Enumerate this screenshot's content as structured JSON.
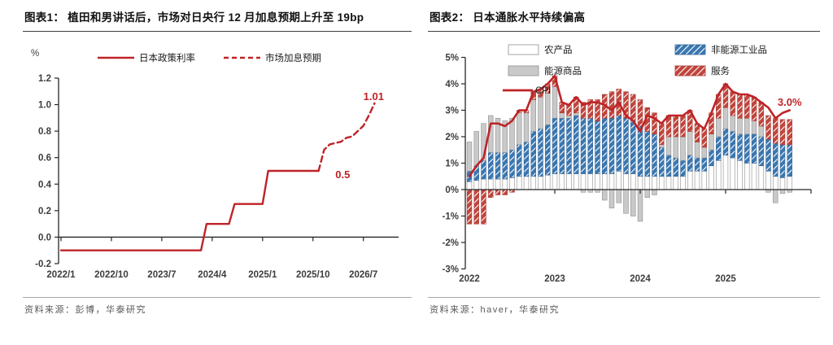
{
  "colors": {
    "red": "#bf2327",
    "hatch_blue": "#3a77b0",
    "hatch_blue_stroke": "#2f639a",
    "hatch_red": "#c0453d",
    "hatch_red_stroke": "#a83b33",
    "bar_gray": "#c9c9c9",
    "bar_white": "#ffffff",
    "bar_stroke": "#8f8f8f",
    "axis": "#262626",
    "tick_text": "#3d3d3d"
  },
  "chart_data": [
    {
      "type": "line",
      "figure_label": "图表1",
      "title": "图表1：  植田和男讲话后，市场对日央行 12 月加息预期上升至 19bp",
      "unit_label": "%",
      "ylim": [
        -0.2,
        1.2
      ],
      "yticks": [
        "1.2",
        "1.0",
        "0.8",
        "0.6",
        "0.4",
        "0.2",
        "0.0",
        "-0.2"
      ],
      "xticks": [
        "2022/1",
        "2022/10",
        "2023/7",
        "2024/4",
        "2025/1",
        "2025/10",
        "2026/7"
      ],
      "x_months_total": 60,
      "grid": false,
      "legend_position": "top",
      "legend": [
        {
          "label": "日本政策利率",
          "style": "solid"
        },
        {
          "label": "市场加息预期",
          "style": "dashed"
        }
      ],
      "series": [
        {
          "name": "日本政策利率",
          "style": "solid",
          "points": [
            [
              "2022-01",
              -0.1
            ],
            [
              "2024-02",
              -0.1
            ],
            [
              "2024-03",
              0.1
            ],
            [
              "2024-07",
              0.1
            ],
            [
              "2024-08",
              0.25
            ],
            [
              "2025-01",
              0.25
            ],
            [
              "2025-02",
              0.5
            ],
            [
              "2025-11",
              0.5
            ]
          ]
        },
        {
          "name": "市场加息预期",
          "style": "dashed",
          "points": [
            [
              "2025-11",
              0.5
            ],
            [
              "2025-12",
              0.66
            ],
            [
              "2026-01",
              0.7
            ],
            [
              "2026-02",
              0.71
            ],
            [
              "2026-03",
              0.72
            ],
            [
              "2026-04",
              0.75
            ],
            [
              "2026-05",
              0.76
            ],
            [
              "2026-06",
              0.8
            ],
            [
              "2026-07",
              0.84
            ],
            [
              "2026-08",
              0.92
            ],
            [
              "2026-09",
              1.01
            ]
          ]
        }
      ],
      "annotations": [
        {
          "text": "0.5",
          "month": "2026-02",
          "value": 0.47
        },
        {
          "text": "1.01",
          "month": "2026-07",
          "value": 1.06
        }
      ],
      "source": "资料来源：彭博，华泰研究"
    },
    {
      "type": "stacked-bar-line",
      "figure_label": "图表2",
      "title": "图表2：  日本通胀水平持续偏高",
      "ylim": [
        -3,
        5
      ],
      "yticks": [
        "5%",
        "4%",
        "3%",
        "2%",
        "1%",
        "0%",
        "-1%",
        "-2%",
        "-3%"
      ],
      "xticks": [
        "2022",
        "2023",
        "2024",
        "2025"
      ],
      "start_month": "2022-01",
      "grid": false,
      "legend_position": "top",
      "legend_columns": [
        [
          {
            "label": "农产品",
            "swatch": "box-white"
          },
          {
            "label": "能源商品",
            "swatch": "box-gray"
          },
          {
            "label": "CPI",
            "swatch": "line-red"
          }
        ],
        [
          {
            "label": "非能源工业品",
            "swatch": "hatch-blue"
          },
          {
            "label": "服务",
            "swatch": "hatch-red"
          }
        ]
      ],
      "bar_series": [
        {
          "name": "农产品",
          "swatch": "box-white",
          "values": [
            0.3,
            0.35,
            0.4,
            0.4,
            0.4,
            0.4,
            0.45,
            0.5,
            0.5,
            0.5,
            0.5,
            0.55,
            0.6,
            0.6,
            0.6,
            0.6,
            0.6,
            0.6,
            0.6,
            0.6,
            0.6,
            0.7,
            0.6,
            0.6,
            0.5,
            0.5,
            0.5,
            0.5,
            0.5,
            0.5,
            0.5,
            0.7,
            0.7,
            0.7,
            0.9,
            1.1,
            1.3,
            1.2,
            1.1,
            1.0,
            1.0,
            0.9,
            0.7,
            0.5,
            0.45,
            0.5
          ]
        },
        {
          "name": "非能源工业品",
          "swatch": "hatch-blue",
          "values": [
            0.4,
            0.55,
            0.7,
            1.0,
            1.0,
            1.0,
            1.05,
            1.2,
            1.3,
            1.7,
            1.8,
            1.9,
            2.1,
            2.1,
            2.1,
            2.2,
            2.1,
            2.1,
            2.0,
            2.1,
            2.1,
            2.1,
            2.1,
            2.0,
            1.9,
            1.7,
            1.6,
            1.1,
            0.8,
            0.7,
            0.6,
            0.6,
            0.5,
            0.5,
            0.6,
            0.9,
            1.0,
            1.0,
            1.0,
            1.1,
            1.1,
            1.1,
            1.2,
            1.25,
            1.25,
            1.2
          ]
        },
        {
          "name": "能源商品",
          "swatch": "box-gray",
          "values": [
            1.1,
            1.3,
            1.4,
            1.4,
            1.3,
            1.2,
            1.2,
            1.2,
            1.1,
            1.2,
            1.2,
            1.2,
            1.2,
            0.2,
            0.1,
            0.1,
            -0.1,
            -0.1,
            -0.1,
            -0.4,
            -0.7,
            -0.5,
            -0.9,
            -1.0,
            -1.2,
            -0.3,
            -0.2,
            0.1,
            0.7,
            0.8,
            0.9,
            0.9,
            0.6,
            0.4,
            0.6,
            0.7,
            0.8,
            0.6,
            0.6,
            0.6,
            0.5,
            0.4,
            -0.1,
            -0.5,
            -0.15,
            -0.1
          ]
        },
        {
          "name": "服务",
          "swatch": "hatch-red",
          "values": [
            -1.3,
            -1.3,
            -1.3,
            -0.3,
            -0.2,
            -0.2,
            -0.1,
            0.1,
            0.1,
            0.3,
            0.3,
            0.35,
            0.4,
            0.4,
            0.4,
            0.6,
            0.6,
            0.7,
            0.8,
            0.9,
            1.0,
            1.0,
            1.0,
            1.0,
            1.0,
            0.9,
            0.8,
            0.8,
            0.8,
            0.8,
            0.8,
            0.8,
            0.7,
            0.7,
            0.8,
            0.9,
            0.9,
            0.9,
            0.9,
            0.9,
            0.9,
            0.9,
            0.9,
            0.95,
            0.95,
            0.95
          ]
        }
      ],
      "line_series": {
        "name": "CPI",
        "values": [
          0.5,
          0.9,
          1.2,
          2.5,
          2.5,
          2.4,
          2.6,
          3.0,
          3.0,
          3.7,
          3.8,
          4.0,
          4.3,
          3.3,
          3.2,
          3.5,
          3.2,
          3.3,
          3.3,
          3.2,
          3.0,
          3.3,
          2.8,
          2.6,
          2.2,
          2.8,
          2.7,
          2.5,
          2.8,
          2.8,
          2.8,
          3.0,
          2.5,
          2.3,
          2.9,
          3.6,
          4.0,
          3.7,
          3.6,
          3.6,
          3.5,
          3.3,
          3.1,
          2.7,
          2.9,
          3.0
        ]
      },
      "annotations": [
        {
          "text": "3.0%",
          "month_index": 43.3,
          "value": 3.3
        }
      ],
      "source": "资料来源：haver，华泰研究"
    }
  ]
}
